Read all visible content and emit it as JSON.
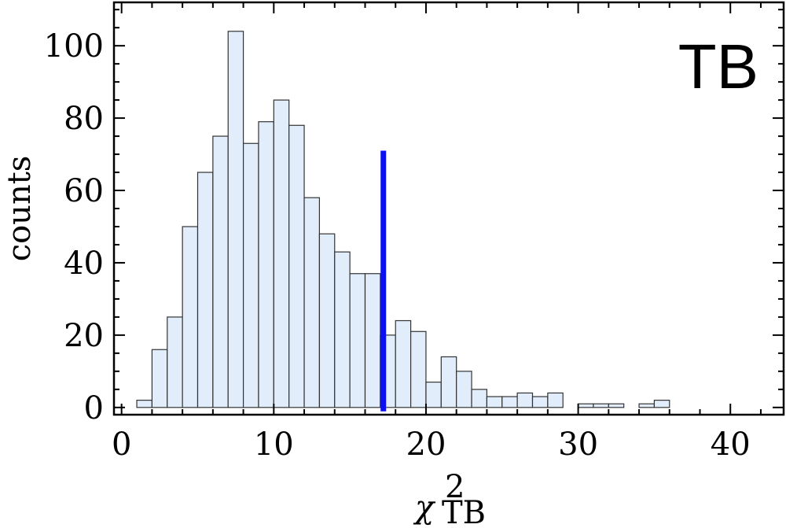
{
  "chart_data": {
    "type": "bar",
    "panel_label": "TB",
    "ylabel": "counts",
    "xlabel": {
      "symbol": "χ",
      "superscript": "2",
      "subscript": "TB"
    },
    "xlim": [
      -0.5,
      43.5
    ],
    "ylim": [
      -2,
      112
    ],
    "x_ticks": [
      0,
      10,
      20,
      30,
      40
    ],
    "y_ticks": [
      0,
      20,
      40,
      60,
      80,
      100
    ],
    "bin_width": 1,
    "bins_start": [
      1,
      2,
      3,
      4,
      5,
      6,
      7,
      8,
      9,
      10,
      11,
      12,
      13,
      14,
      15,
      16,
      17,
      18,
      19,
      20,
      21,
      22,
      23,
      24,
      25,
      26,
      27,
      28,
      29,
      30,
      31,
      32,
      33,
      34,
      35
    ],
    "values": [
      2,
      16,
      25,
      50,
      65,
      75,
      104,
      73,
      79,
      85,
      78,
      58,
      48,
      43,
      37,
      37,
      20,
      24,
      21,
      7,
      14,
      10,
      5,
      3,
      3,
      4,
      3,
      4,
      0,
      1,
      1,
      1,
      0,
      1,
      2
    ],
    "reference_line": {
      "x": 17.2,
      "y_from": 0,
      "y_to": 71,
      "color": "#0a10f0"
    },
    "colors": {
      "bar_fill": "#e1edfb",
      "bar_stroke": "#333333"
    },
    "grid": false
  }
}
